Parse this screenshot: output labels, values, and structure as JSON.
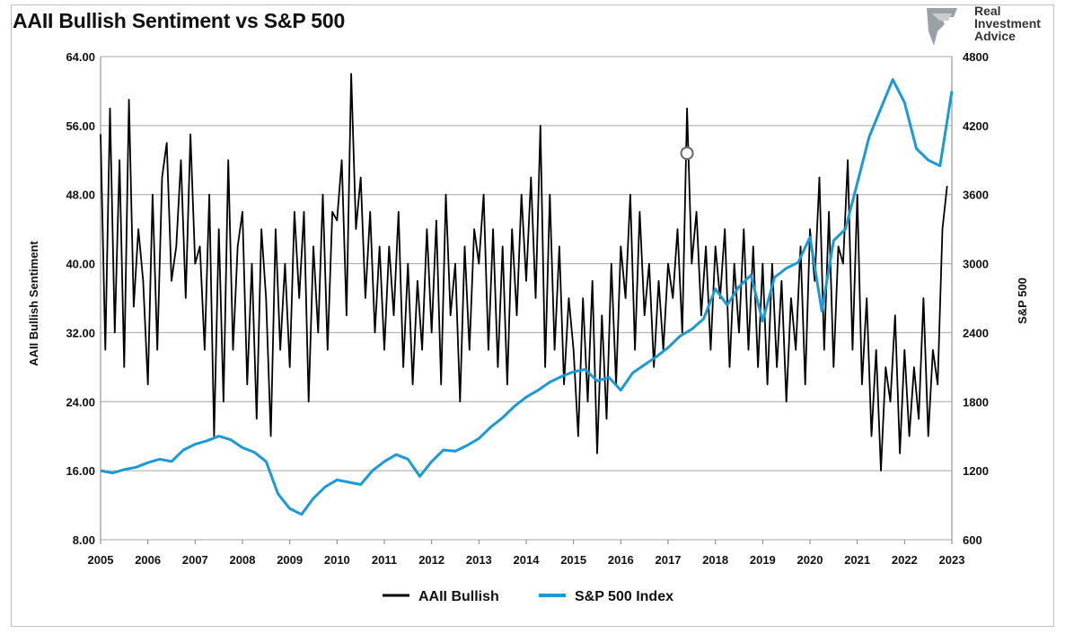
{
  "brand": {
    "line1": "Real",
    "line2": "Investment",
    "line3": "Advice"
  },
  "chart_data": {
    "type": "line",
    "title": "AAII Bullish Sentiment vs S&P 500",
    "ylabel": "AAII Bullish Sentiment",
    "y2label": "S&P 500",
    "ylim": [
      8,
      64
    ],
    "y2lim": [
      600,
      4800
    ],
    "xlim": [
      2005,
      2023
    ],
    "y_ticks": [
      "8.00",
      "16.00",
      "24.00",
      "32.00",
      "40.00",
      "48.00",
      "56.00",
      "64.00"
    ],
    "y2_ticks": [
      "600",
      "1200",
      "1800",
      "2400",
      "3000",
      "3600",
      "4200",
      "4800"
    ],
    "x_ticks": [
      "2005",
      "2006",
      "2007",
      "2008",
      "2009",
      "2010",
      "2011",
      "2012",
      "2013",
      "2014",
      "2015",
      "2016",
      "2017",
      "2018",
      "2019",
      "2020",
      "2021",
      "2022",
      "2023"
    ],
    "grid": "horizontal",
    "legend_position": "bottom",
    "series": [
      {
        "name": "AAII Bullish",
        "axis": "left",
        "color": "#000000",
        "x": [
          2005.0,
          2005.1,
          2005.2,
          2005.3,
          2005.4,
          2005.5,
          2005.6,
          2005.7,
          2005.8,
          2005.9,
          2006.0,
          2006.1,
          2006.2,
          2006.3,
          2006.4,
          2006.5,
          2006.6,
          2006.7,
          2006.8,
          2006.9,
          2007.0,
          2007.1,
          2007.2,
          2007.3,
          2007.4,
          2007.5,
          2007.6,
          2007.7,
          2007.8,
          2007.9,
          2008.0,
          2008.1,
          2008.2,
          2008.3,
          2008.4,
          2008.5,
          2008.6,
          2008.7,
          2008.8,
          2008.9,
          2009.0,
          2009.1,
          2009.2,
          2009.3,
          2009.4,
          2009.5,
          2009.6,
          2009.7,
          2009.8,
          2009.9,
          2010.0,
          2010.1,
          2010.2,
          2010.3,
          2010.4,
          2010.5,
          2010.6,
          2010.7,
          2010.8,
          2010.9,
          2011.0,
          2011.1,
          2011.2,
          2011.3,
          2011.4,
          2011.5,
          2011.6,
          2011.7,
          2011.8,
          2011.9,
          2012.0,
          2012.1,
          2012.2,
          2012.3,
          2012.4,
          2012.5,
          2012.6,
          2012.7,
          2012.8,
          2012.9,
          2013.0,
          2013.1,
          2013.2,
          2013.3,
          2013.4,
          2013.5,
          2013.6,
          2013.7,
          2013.8,
          2013.9,
          2014.0,
          2014.1,
          2014.2,
          2014.3,
          2014.4,
          2014.5,
          2014.6,
          2014.7,
          2014.8,
          2014.9,
          2015.0,
          2015.1,
          2015.2,
          2015.3,
          2015.4,
          2015.5,
          2015.6,
          2015.7,
          2015.8,
          2015.9,
          2016.0,
          2016.1,
          2016.2,
          2016.3,
          2016.4,
          2016.5,
          2016.6,
          2016.7,
          2016.8,
          2016.9,
          2017.0,
          2017.1,
          2017.2,
          2017.3,
          2017.4,
          2017.5,
          2017.6,
          2017.7,
          2017.8,
          2017.9,
          2018.0,
          2018.1,
          2018.2,
          2018.3,
          2018.4,
          2018.5,
          2018.6,
          2018.7,
          2018.8,
          2018.9,
          2019.0,
          2019.1,
          2019.2,
          2019.3,
          2019.4,
          2019.5,
          2019.6,
          2019.7,
          2019.8,
          2019.9,
          2020.0,
          2020.1,
          2020.2,
          2020.3,
          2020.4,
          2020.5,
          2020.6,
          2020.7,
          2020.8,
          2020.9,
          2021.0,
          2021.1,
          2021.2,
          2021.3,
          2021.4,
          2021.5,
          2021.6,
          2021.7,
          2021.8,
          2021.9,
          2022.0,
          2022.1,
          2022.2,
          2022.3,
          2022.4,
          2022.5,
          2022.6,
          2022.7,
          2022.8,
          2022.9
        ],
        "values": [
          55,
          30,
          58,
          32,
          52,
          28,
          59,
          35,
          44,
          38,
          26,
          48,
          30,
          50,
          54,
          38,
          42,
          52,
          36,
          55,
          40,
          42,
          30,
          48,
          20,
          44,
          24,
          52,
          30,
          42,
          46,
          26,
          40,
          22,
          44,
          36,
          20,
          44,
          30,
          40,
          28,
          46,
          36,
          46,
          24,
          42,
          32,
          48,
          30,
          46,
          45,
          52,
          34,
          62,
          44,
          50,
          36,
          46,
          32,
          42,
          30,
          42,
          34,
          46,
          28,
          40,
          26,
          38,
          30,
          44,
          32,
          45,
          26,
          48,
          34,
          40,
          24,
          42,
          30,
          44,
          40,
          48,
          30,
          44,
          28,
          42,
          26,
          44,
          34,
          48,
          38,
          50,
          36,
          56,
          28,
          48,
          30,
          42,
          26,
          36,
          30,
          20,
          36,
          24,
          38,
          18,
          34,
          22,
          40,
          26,
          42,
          36,
          48,
          30,
          46,
          34,
          40,
          28,
          38,
          30,
          40,
          36,
          44,
          32,
          58,
          40,
          46,
          34,
          42,
          30,
          42,
          36,
          44,
          28,
          40,
          32,
          44,
          30,
          42,
          28,
          40,
          26,
          40,
          28,
          38,
          24,
          36,
          30,
          42,
          26,
          44,
          38,
          50,
          30,
          46,
          28,
          42,
          40,
          52,
          30,
          48,
          26,
          36,
          20,
          30,
          16,
          28,
          24,
          34,
          18,
          30,
          20,
          28,
          22,
          36,
          20,
          30,
          26,
          44,
          49
        ]
      },
      {
        "name": "S&P 500 Index",
        "axis": "right",
        "color": "#1a9ad6",
        "x": [
          2005.0,
          2005.25,
          2005.5,
          2005.75,
          2006.0,
          2006.25,
          2006.5,
          2006.75,
          2007.0,
          2007.25,
          2007.5,
          2007.75,
          2008.0,
          2008.25,
          2008.5,
          2008.75,
          2009.0,
          2009.25,
          2009.5,
          2009.75,
          2010.0,
          2010.25,
          2010.5,
          2010.75,
          2011.0,
          2011.25,
          2011.5,
          2011.75,
          2012.0,
          2012.25,
          2012.5,
          2012.75,
          2013.0,
          2013.25,
          2013.5,
          2013.75,
          2014.0,
          2014.25,
          2014.5,
          2014.75,
          2015.0,
          2015.25,
          2015.5,
          2015.75,
          2016.0,
          2016.25,
          2016.5,
          2016.75,
          2017.0,
          2017.25,
          2017.5,
          2017.75,
          2018.0,
          2018.25,
          2018.5,
          2018.75,
          2019.0,
          2019.25,
          2019.5,
          2019.75,
          2020.0,
          2020.25,
          2020.5,
          2020.75,
          2021.0,
          2021.25,
          2021.5,
          2021.75,
          2022.0,
          2022.25,
          2022.5,
          2022.75,
          2023.0
        ],
        "values": [
          1200,
          1180,
          1210,
          1230,
          1270,
          1300,
          1280,
          1380,
          1430,
          1460,
          1500,
          1470,
          1400,
          1360,
          1280,
          1000,
          870,
          820,
          960,
          1060,
          1120,
          1100,
          1080,
          1200,
          1280,
          1340,
          1300,
          1150,
          1280,
          1380,
          1370,
          1420,
          1480,
          1580,
          1660,
          1760,
          1840,
          1900,
          1970,
          2020,
          2060,
          2080,
          1980,
          2010,
          1900,
          2050,
          2120,
          2190,
          2270,
          2370,
          2430,
          2520,
          2780,
          2640,
          2800,
          2900,
          2500,
          2880,
          2960,
          3010,
          3230,
          2590,
          3200,
          3300,
          3700,
          4100,
          4350,
          4600,
          4400,
          4000,
          3900,
          3850,
          4500
        ]
      }
    ],
    "annotations": [
      {
        "type": "circle-marker",
        "x": 2017.4,
        "y": 52.8,
        "axis": "left"
      }
    ]
  }
}
